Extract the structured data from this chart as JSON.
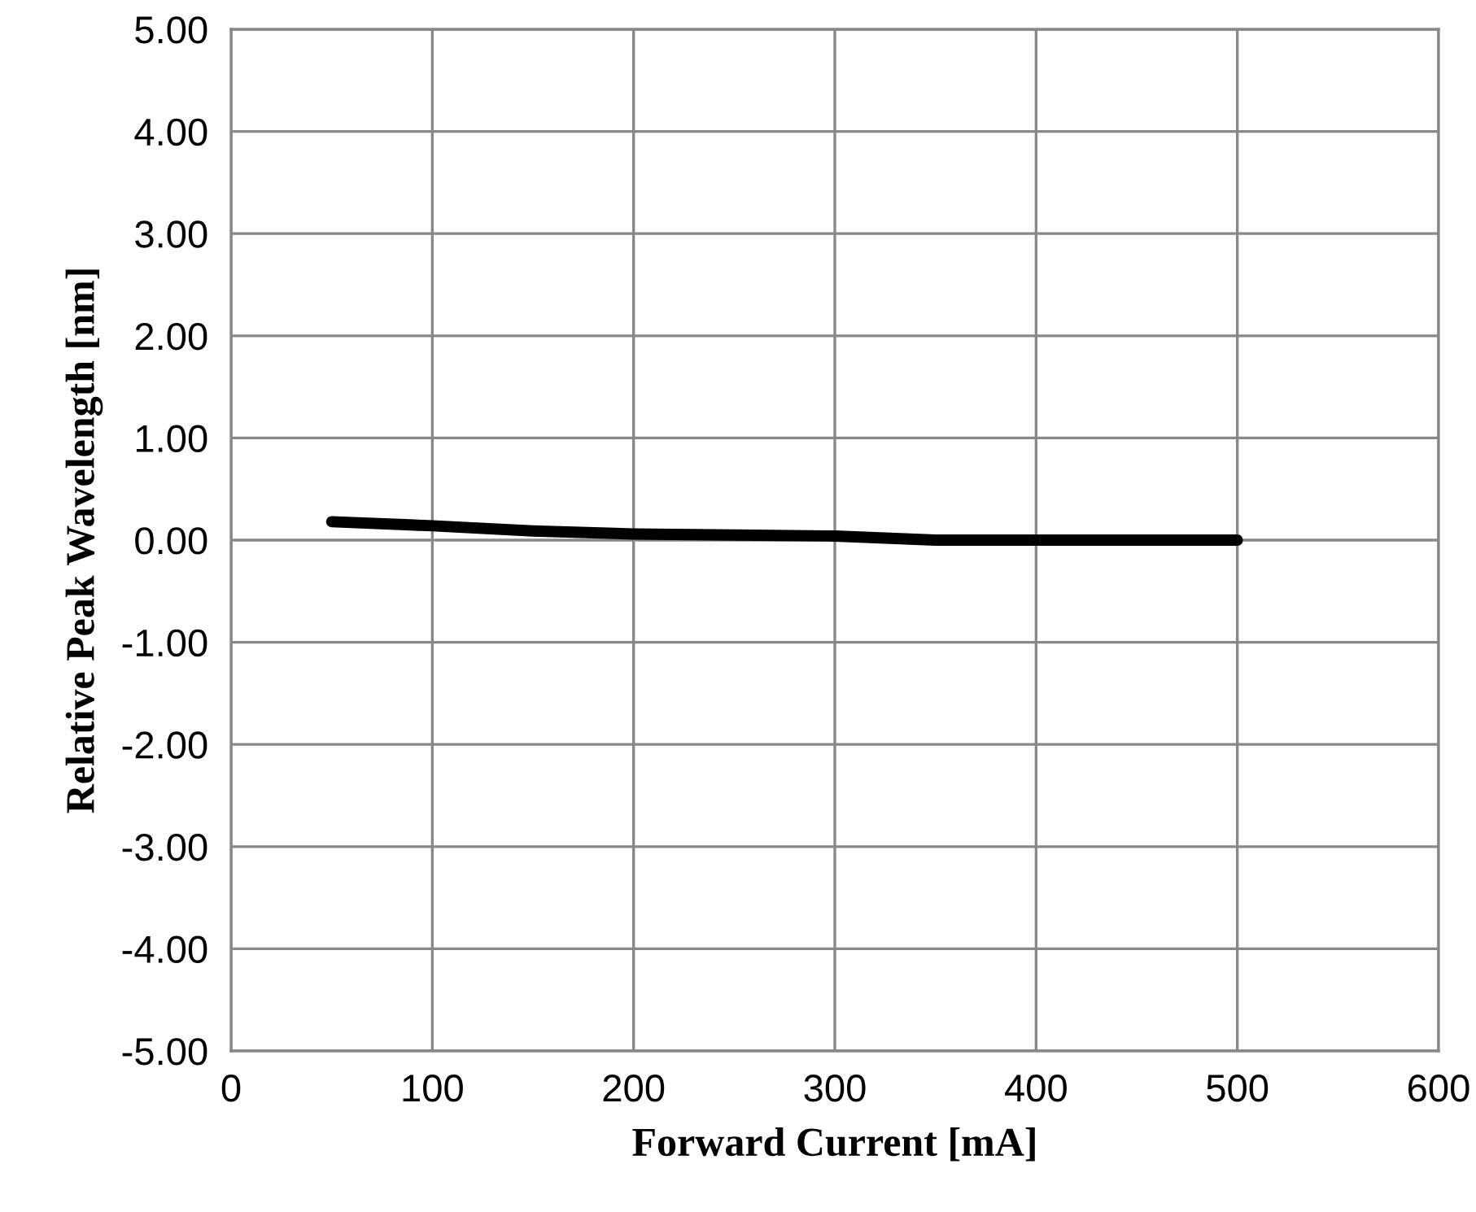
{
  "chart_data": {
    "type": "line",
    "xlabel": "Forward Current [mA]",
    "ylabel": "Relative Peak Wavelength [nm]",
    "x": [
      50,
      100,
      150,
      200,
      250,
      300,
      350,
      400,
      450,
      500
    ],
    "series": [
      {
        "color": "#000000",
        "values": [
          0.18,
          0.14,
          0.09,
          0.06,
          0.05,
          0.04,
          0.0,
          0.0,
          0.0,
          0.0
        ]
      }
    ],
    "xlim": [
      0,
      600
    ],
    "xticks": [
      0,
      100,
      200,
      300,
      400,
      500,
      600
    ],
    "ylim": [
      -5,
      5
    ],
    "yticks": [
      {
        "value": -5,
        "label": "-5.00"
      },
      {
        "value": -4,
        "label": "-4.00"
      },
      {
        "value": -3,
        "label": "-3.00"
      },
      {
        "value": -2,
        "label": "-2.00"
      },
      {
        "value": -1,
        "label": "-1.00"
      },
      {
        "value": 0,
        "label": "0.00"
      },
      {
        "value": 1,
        "label": "1.00"
      },
      {
        "value": 2,
        "label": "2.00"
      },
      {
        "value": 3,
        "label": "3.00"
      },
      {
        "value": 4,
        "label": "4.00"
      },
      {
        "value": 5,
        "label": "5.00"
      }
    ],
    "grid": true,
    "legend": false,
    "marker": "none",
    "line_style": "solid"
  }
}
